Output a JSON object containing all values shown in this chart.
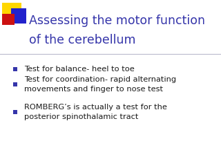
{
  "title_line1": "Assessing the motor function",
  "title_line2": "of the cerebellum",
  "title_color": "#3535AA",
  "background_color": "#FFFFFF",
  "bullet_color": "#1a1a1a",
  "bullet_marker_color": "#3535AA",
  "divider_color": "#BBBBCC",
  "bullets": [
    "Test for balance- heel to toe",
    "Test for coordination- rapid alternating\nmovements and finger to nose test",
    "ROMBERG’s is actually a test for the\nposterior spinothalamic tract"
  ],
  "yellow_color": "#FFD700",
  "blue_color": "#2222CC",
  "red_color": "#CC1111",
  "figsize": [
    3.2,
    2.4
  ],
  "dpi": 100
}
